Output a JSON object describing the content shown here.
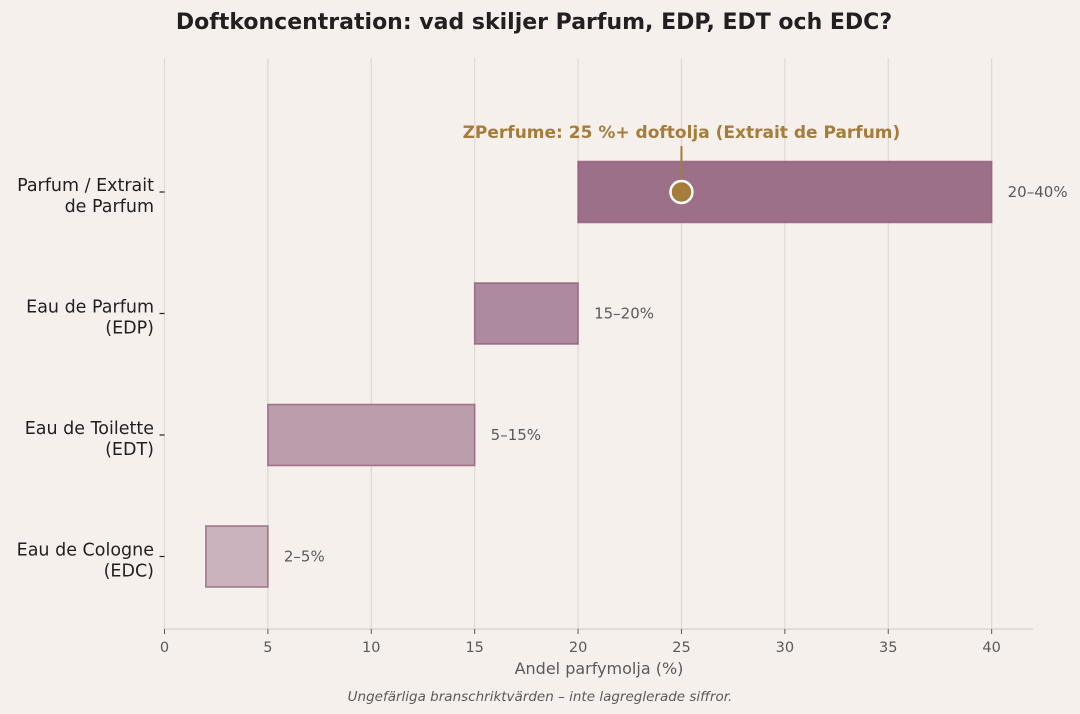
{
  "chart_data": {
    "type": "bar",
    "orientation": "horizontal",
    "title": "Doftkoncentration: vad skiljer Parfum, EDP, EDT och EDC?",
    "xlabel": "Andel parfymolja (%)",
    "ylabel": "",
    "xlim": [
      0,
      42
    ],
    "xticks": [
      0,
      5,
      10,
      15,
      20,
      25,
      30,
      35,
      40
    ],
    "grid": "vertical",
    "categories": [
      {
        "line1": "Parfum / Extrait",
        "line2": "de Parfum",
        "start": 20,
        "end": 40,
        "label": "20–40%",
        "color": "#9b7088"
      },
      {
        "line1": "Eau de Parfum",
        "line2": "(EDP)",
        "start": 15,
        "end": 20,
        "label": "15–20%",
        "color": "#ad8aa0"
      },
      {
        "line1": "Eau de Toilette",
        "line2": "(EDT)",
        "start": 5,
        "end": 15,
        "label": "5–15%",
        "color": "#bb9eac"
      },
      {
        "line1": "Eau de Cologne",
        "line2": "(EDC)",
        "start": 2,
        "end": 5,
        "label": "2–5%",
        "color": "#cbb3bd"
      }
    ],
    "annotation": {
      "text": "ZPerfume: 25 %+ doftolja (Extrait de Parfum)",
      "x": 25,
      "category_index": 0,
      "color": "#a67c3a"
    },
    "footnote": "Ungefärliga branschriktvärden – inte lagreglerade siffror."
  }
}
